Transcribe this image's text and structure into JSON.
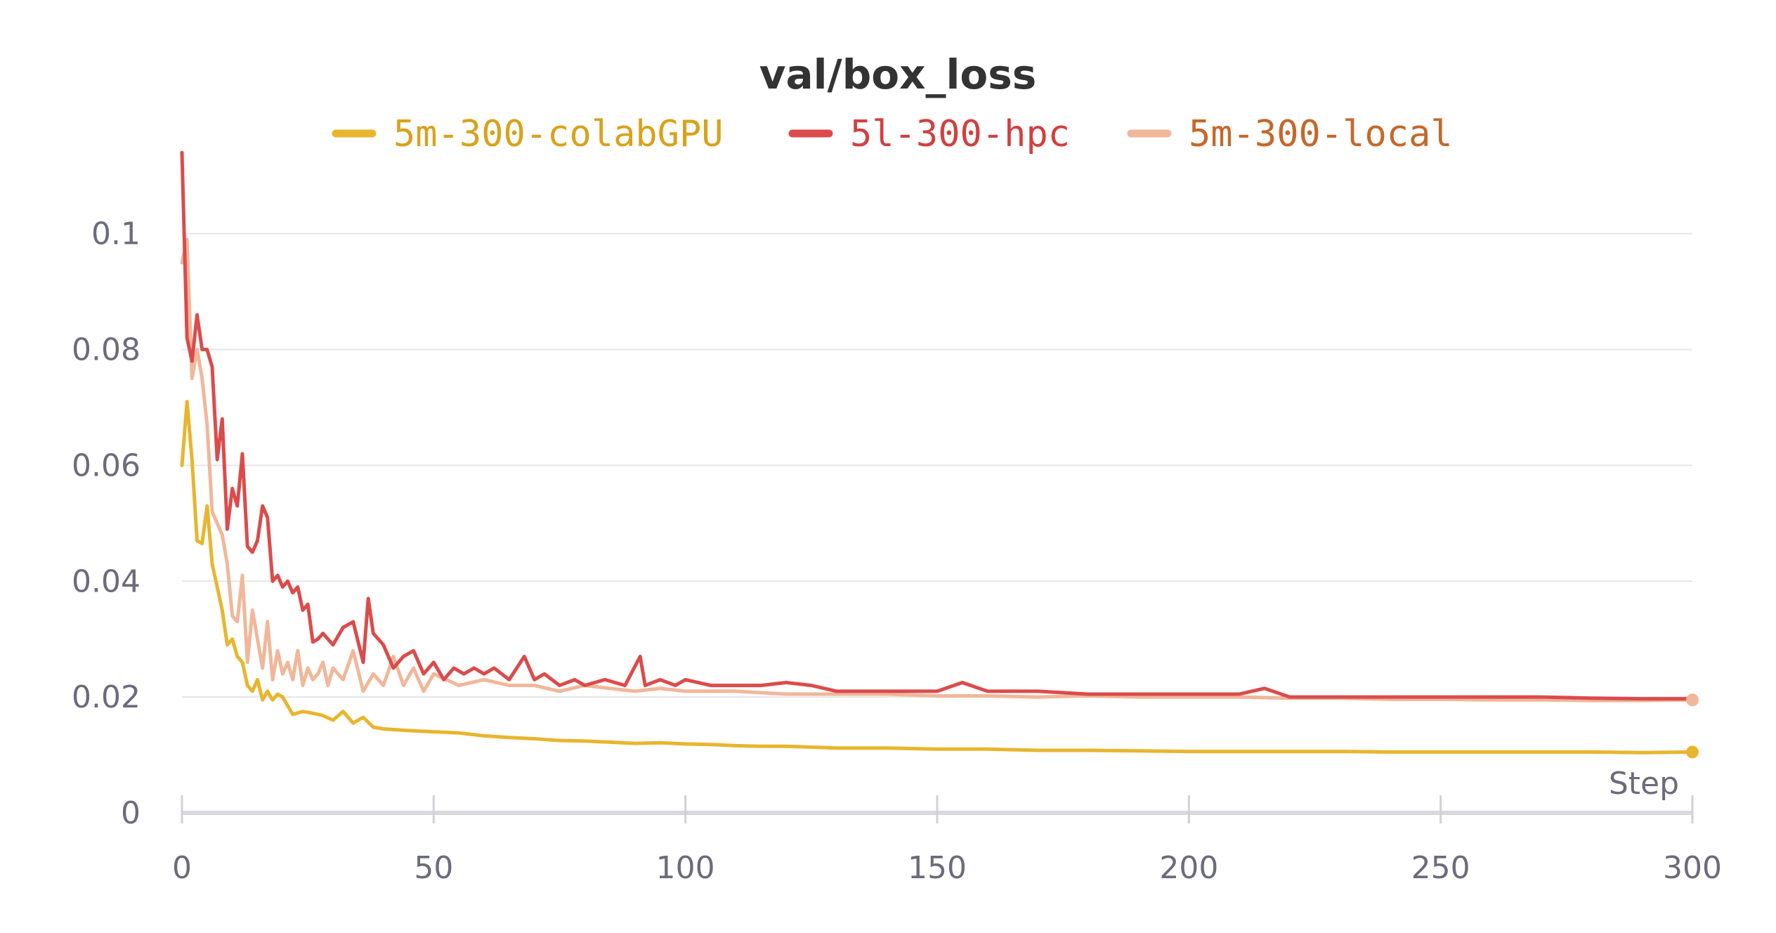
{
  "chart_data": {
    "type": "line",
    "title": "val/box_loss",
    "xlabel": "Step",
    "ylabel": "",
    "xlim": [
      0,
      300
    ],
    "ylim": [
      0,
      0.115
    ],
    "x_ticks": [
      0,
      50,
      100,
      150,
      200,
      250,
      300
    ],
    "x_tick_labels": [
      "0",
      "50",
      "100",
      "150",
      "200",
      "250",
      "300"
    ],
    "y_ticks": [
      0,
      0.02,
      0.04,
      0.06,
      0.08,
      0.1
    ],
    "y_tick_labels": [
      "0",
      "0.02",
      "0.04",
      "0.06",
      "0.08",
      "0.1"
    ],
    "grid": true,
    "legend_position": "top-center",
    "series": [
      {
        "name": "5m-300-colabGPU",
        "color": "#e8b52e",
        "label_color": "#d9a21a",
        "x": [
          0,
          1,
          2,
          3,
          4,
          5,
          6,
          7,
          8,
          9,
          10,
          11,
          12,
          13,
          14,
          15,
          16,
          17,
          18,
          19,
          20,
          22,
          24,
          26,
          28,
          30,
          32,
          34,
          36,
          38,
          40,
          45,
          50,
          55,
          60,
          65,
          70,
          75,
          80,
          85,
          90,
          95,
          100,
          105,
          110,
          115,
          120,
          130,
          140,
          150,
          160,
          170,
          180,
          190,
          200,
          210,
          220,
          230,
          240,
          250,
          260,
          270,
          280,
          290,
          300
        ],
        "y": [
          0.06,
          0.071,
          0.061,
          0.047,
          0.0465,
          0.053,
          0.043,
          0.039,
          0.035,
          0.029,
          0.03,
          0.027,
          0.026,
          0.022,
          0.021,
          0.023,
          0.0195,
          0.021,
          0.0195,
          0.0205,
          0.02,
          0.017,
          0.0175,
          0.0172,
          0.0168,
          0.016,
          0.0175,
          0.0155,
          0.0165,
          0.0148,
          0.0145,
          0.0142,
          0.014,
          0.0138,
          0.0133,
          0.013,
          0.0128,
          0.0125,
          0.0124,
          0.0122,
          0.012,
          0.0121,
          0.0119,
          0.0118,
          0.0116,
          0.0115,
          0.0115,
          0.0112,
          0.0112,
          0.011,
          0.011,
          0.0108,
          0.0108,
          0.0107,
          0.0106,
          0.0106,
          0.0106,
          0.0106,
          0.0105,
          0.0105,
          0.0105,
          0.0105,
          0.0105,
          0.0104,
          0.0105
        ]
      },
      {
        "name": "5l-300-hpc",
        "color": "#dc4b4b",
        "label_color": "#d24040",
        "x": [
          0,
          1,
          2,
          3,
          4,
          5,
          6,
          7,
          8,
          9,
          10,
          11,
          12,
          13,
          14,
          15,
          16,
          17,
          18,
          19,
          20,
          21,
          22,
          23,
          24,
          25,
          26,
          27,
          28,
          30,
          32,
          34,
          36,
          37,
          38,
          40,
          42,
          44,
          46,
          48,
          50,
          52,
          54,
          56,
          58,
          60,
          62,
          65,
          68,
          70,
          72,
          75,
          78,
          80,
          84,
          88,
          91,
          92,
          95,
          98,
          100,
          105,
          110,
          115,
          120,
          125,
          130,
          140,
          150,
          155,
          160,
          170,
          180,
          190,
          200,
          210,
          215,
          220,
          230,
          240,
          250,
          260,
          270,
          280,
          290,
          300
        ],
        "y": [
          0.114,
          0.082,
          0.078,
          0.086,
          0.08,
          0.08,
          0.077,
          0.061,
          0.068,
          0.049,
          0.056,
          0.053,
          0.062,
          0.046,
          0.045,
          0.047,
          0.053,
          0.051,
          0.04,
          0.041,
          0.039,
          0.04,
          0.038,
          0.039,
          0.035,
          0.036,
          0.0295,
          0.03,
          0.031,
          0.029,
          0.032,
          0.033,
          0.026,
          0.037,
          0.031,
          0.029,
          0.025,
          0.027,
          0.028,
          0.024,
          0.026,
          0.023,
          0.025,
          0.024,
          0.025,
          0.024,
          0.025,
          0.023,
          0.027,
          0.023,
          0.024,
          0.022,
          0.023,
          0.022,
          0.023,
          0.022,
          0.027,
          0.022,
          0.023,
          0.022,
          0.023,
          0.022,
          0.022,
          0.022,
          0.0225,
          0.022,
          0.021,
          0.021,
          0.021,
          0.0225,
          0.021,
          0.021,
          0.0205,
          0.0205,
          0.0205,
          0.0205,
          0.0215,
          0.02,
          0.02,
          0.02,
          0.02,
          0.02,
          0.02,
          0.0198,
          0.0197,
          0.0197
        ]
      },
      {
        "name": "5m-300-local",
        "color": "#f0b79a",
        "label_color": "#c5682a",
        "x": [
          0,
          1,
          2,
          3,
          4,
          5,
          6,
          7,
          8,
          9,
          10,
          11,
          12,
          13,
          14,
          15,
          16,
          17,
          18,
          19,
          20,
          21,
          22,
          23,
          24,
          25,
          26,
          27,
          28,
          29,
          30,
          32,
          34,
          36,
          38,
          40,
          42,
          44,
          46,
          48,
          50,
          55,
          60,
          65,
          70,
          75,
          80,
          85,
          90,
          95,
          100,
          110,
          120,
          130,
          140,
          150,
          160,
          170,
          180,
          190,
          200,
          210,
          220,
          230,
          240,
          250,
          260,
          270,
          280,
          290,
          300
        ],
        "y": [
          0.095,
          0.099,
          0.075,
          0.08,
          0.075,
          0.067,
          0.052,
          0.05,
          0.048,
          0.043,
          0.034,
          0.033,
          0.041,
          0.026,
          0.035,
          0.03,
          0.025,
          0.033,
          0.023,
          0.028,
          0.024,
          0.026,
          0.023,
          0.028,
          0.022,
          0.025,
          0.023,
          0.024,
          0.026,
          0.022,
          0.025,
          0.023,
          0.028,
          0.021,
          0.024,
          0.022,
          0.027,
          0.022,
          0.025,
          0.021,
          0.024,
          0.022,
          0.023,
          0.022,
          0.022,
          0.021,
          0.022,
          0.0215,
          0.021,
          0.0215,
          0.021,
          0.021,
          0.0205,
          0.0205,
          0.0205,
          0.0202,
          0.0202,
          0.02,
          0.0202,
          0.02,
          0.02,
          0.02,
          0.0198,
          0.0198,
          0.0196,
          0.0196,
          0.0195,
          0.0195,
          0.0194,
          0.0194,
          0.0195
        ]
      }
    ]
  }
}
